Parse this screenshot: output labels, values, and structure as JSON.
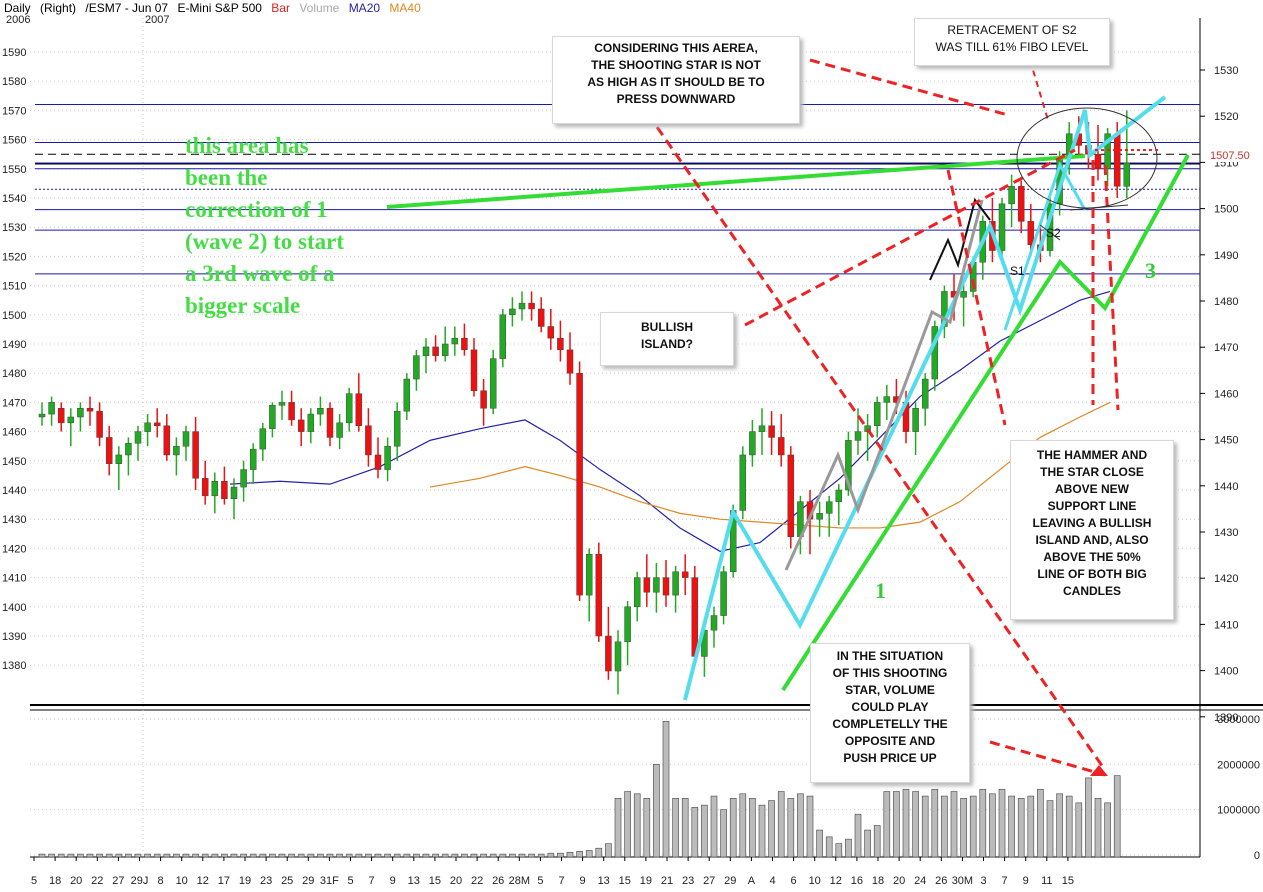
{
  "header": {
    "period": "Daily",
    "side": "(Right)",
    "symbol": "/ESM7 - Jun 07",
    "name": "E-Mini S&P 500",
    "legend_bar": "Bar",
    "legend_volume": "Volume",
    "legend_ma20": "MA20",
    "legend_ma40": "MA40",
    "year_2006": "2006",
    "year_2007": "2007"
  },
  "colors": {
    "bar_label": "#dd2222",
    "volume_label": "#aaaaaa",
    "ma20": "#2222aa",
    "ma40": "#dd8822",
    "bull": "#22aa22",
    "bear": "#ee1111"
  },
  "last_price_label": "1507.50",
  "annotations": {
    "green_note": [
      "this area has",
      "been the",
      "correction of 1",
      "(wave 2) to start",
      "a 3rd wave of a",
      "bigger scale"
    ],
    "shooting_star": [
      "CONSIDERING THIS AEREA,",
      "THE SHOOTING STAR IS NOT",
      "AS HIGH AS IT SHOULD BE TO",
      "PRESS DOWNWARD"
    ],
    "retracement": [
      "RETRACEMENT OF S2",
      "WAS TILL 61% FIBO LEVEL"
    ],
    "bullish_island": [
      "BULLISH",
      "ISLAND?"
    ],
    "hammer": [
      "THE HAMMER AND",
      "THE STAR CLOSE",
      "ABOVE NEW",
      "SUPPORT LINE",
      "LEAVING A BULLISH",
      "ISLAND AND, ALSO",
      "ABOVE THE 50%",
      "LINE OF BOTH BIG",
      "CANDLES"
    ],
    "volume_note": [
      "IN THE SITUATION",
      "OF THIS SHOOTING",
      "STAR, VOLUME",
      "COULD PLAY",
      "COMPLETELLY THE",
      "OPPOSITE AND",
      "PUSH PRICE UP"
    ],
    "wave_1": "1",
    "wave_3": "3",
    "s1": "S1",
    "s2": "S2"
  },
  "chart_data": {
    "type": "candlestick",
    "instrument": "/ESM7 - Jun 07 E-Mini S&P 500",
    "period": "Daily",
    "left_axis": {
      "min": 1370,
      "max": 1595,
      "ticks": [
        1380,
        1390,
        1400,
        1410,
        1420,
        1430,
        1440,
        1450,
        1460,
        1470,
        1480,
        1490,
        1500,
        1510,
        1520,
        1530,
        1540,
        1550,
        1560,
        1570,
        1580,
        1590
      ]
    },
    "right_axis": {
      "ticks": [
        1390,
        1400,
        1410,
        1420,
        1430,
        1440,
        1450,
        1460,
        1470,
        1480,
        1490,
        1500,
        1510,
        1520,
        1530
      ]
    },
    "volume_axis": {
      "min": 0,
      "max": 3000000,
      "ticks": [
        0,
        1000000,
        2000000,
        3000000
      ],
      "tick_labels": [
        "0",
        "1000000",
        "2000000",
        "3000000"
      ]
    },
    "x_tick_labels": [
      "5",
      "18",
      "20",
      "22",
      "27",
      "29J",
      "8",
      "10",
      "12",
      "17",
      "19",
      "23",
      "25",
      "29",
      "31F",
      "5",
      "7",
      "9",
      "13",
      "15",
      "20",
      "22",
      "26",
      "28M",
      "5",
      "7",
      "9",
      "13",
      "15",
      "19",
      "21",
      "23",
      "27",
      "29",
      "A",
      "4",
      "6",
      "10",
      "12",
      "16",
      "18",
      "20",
      "24",
      "26",
      "30M",
      "3",
      "7",
      "9",
      "11",
      "15"
    ],
    "horizontal_levels": [
      {
        "value": 1572,
        "style": "solid"
      },
      {
        "value": 1559,
        "style": "solid"
      },
      {
        "value": 1555,
        "style": "dashed"
      },
      {
        "value": 1552,
        "style": "solid"
      },
      {
        "value": 1550,
        "style": "solid"
      },
      {
        "value": 1543,
        "style": "dotted"
      },
      {
        "value": 1536,
        "style": "solid"
      },
      {
        "value": 1529,
        "style": "solid"
      },
      {
        "value": 1514,
        "style": "solid"
      }
    ],
    "candles": [
      [
        1465,
        1470,
        1462,
        1466
      ],
      [
        1466,
        1472,
        1462,
        1470
      ],
      [
        1468,
        1470,
        1460,
        1463
      ],
      [
        1463,
        1468,
        1455,
        1465
      ],
      [
        1465,
        1470,
        1460,
        1468
      ],
      [
        1468,
        1472,
        1462,
        1467
      ],
      [
        1467,
        1470,
        1455,
        1458
      ],
      [
        1458,
        1462,
        1445,
        1449
      ],
      [
        1449,
        1455,
        1440,
        1452
      ],
      [
        1452,
        1458,
        1445,
        1456
      ],
      [
        1456,
        1462,
        1450,
        1460
      ],
      [
        1460,
        1466,
        1455,
        1463
      ],
      [
        1463,
        1468,
        1458,
        1462
      ],
      [
        1462,
        1466,
        1450,
        1452
      ],
      [
        1452,
        1458,
        1445,
        1455
      ],
      [
        1455,
        1462,
        1450,
        1460
      ],
      [
        1460,
        1465,
        1440,
        1444
      ],
      [
        1444,
        1450,
        1435,
        1438
      ],
      [
        1438,
        1446,
        1432,
        1443
      ],
      [
        1443,
        1448,
        1435,
        1437
      ],
      [
        1437,
        1444,
        1430,
        1441
      ],
      [
        1441,
        1450,
        1436,
        1447
      ],
      [
        1447,
        1456,
        1442,
        1454
      ],
      [
        1454,
        1463,
        1450,
        1461
      ],
      [
        1461,
        1470,
        1458,
        1469
      ],
      [
        1469,
        1474,
        1464,
        1470
      ],
      [
        1470,
        1474,
        1462,
        1464
      ],
      [
        1464,
        1468,
        1455,
        1460
      ],
      [
        1460,
        1468,
        1456,
        1466
      ],
      [
        1466,
        1472,
        1462,
        1468
      ],
      [
        1468,
        1470,
        1455,
        1458
      ],
      [
        1458,
        1466,
        1454,
        1463
      ],
      [
        1463,
        1475,
        1460,
        1473
      ],
      [
        1473,
        1480,
        1460,
        1462
      ],
      [
        1462,
        1468,
        1448,
        1452
      ],
      [
        1452,
        1458,
        1444,
        1447
      ],
      [
        1447,
        1458,
        1443,
        1455
      ],
      [
        1455,
        1470,
        1450,
        1467
      ],
      [
        1467,
        1480,
        1464,
        1478
      ],
      [
        1478,
        1488,
        1474,
        1486
      ],
      [
        1486,
        1492,
        1480,
        1489
      ],
      [
        1489,
        1493,
        1484,
        1486
      ],
      [
        1486,
        1496,
        1484,
        1490
      ],
      [
        1490,
        1496,
        1486,
        1492
      ],
      [
        1492,
        1497,
        1486,
        1488
      ],
      [
        1488,
        1492,
        1472,
        1474
      ],
      [
        1474,
        1478,
        1462,
        1468
      ],
      [
        1468,
        1488,
        1466,
        1485
      ],
      [
        1485,
        1502,
        1482,
        1500
      ],
      [
        1500,
        1506,
        1496,
        1502
      ],
      [
        1502,
        1508,
        1498,
        1504
      ],
      [
        1504,
        1508,
        1498,
        1502
      ],
      [
        1502,
        1506,
        1494,
        1496
      ],
      [
        1496,
        1502,
        1488,
        1492
      ],
      [
        1492,
        1498,
        1484,
        1488
      ],
      [
        1488,
        1494,
        1476,
        1480
      ],
      [
        1480,
        1484,
        1402,
        1404
      ],
      [
        1404,
        1420,
        1395,
        1418
      ],
      [
        1418,
        1422,
        1388,
        1390
      ],
      [
        1390,
        1400,
        1375,
        1378
      ],
      [
        1378,
        1392,
        1370,
        1388
      ],
      [
        1388,
        1402,
        1380,
        1400
      ],
      [
        1400,
        1412,
        1395,
        1410
      ],
      [
        1410,
        1418,
        1400,
        1405
      ],
      [
        1405,
        1415,
        1398,
        1410
      ],
      [
        1410,
        1416,
        1400,
        1404
      ],
      [
        1404,
        1414,
        1398,
        1412
      ],
      [
        1412,
        1418,
        1404,
        1410
      ],
      [
        1410,
        1414,
        1380,
        1383
      ],
      [
        1383,
        1394,
        1376,
        1392
      ],
      [
        1392,
        1400,
        1386,
        1397
      ],
      [
        1397,
        1414,
        1394,
        1412
      ],
      [
        1412,
        1435,
        1410,
        1433
      ],
      [
        1433,
        1455,
        1430,
        1452
      ],
      [
        1452,
        1464,
        1448,
        1460
      ],
      [
        1460,
        1468,
        1452,
        1462
      ],
      [
        1462,
        1467,
        1452,
        1458
      ],
      [
        1458,
        1466,
        1448,
        1452
      ],
      [
        1452,
        1455,
        1420,
        1424
      ],
      [
        1424,
        1438,
        1418,
        1436
      ],
      [
        1436,
        1440,
        1418,
        1430
      ],
      [
        1430,
        1436,
        1424,
        1432
      ],
      [
        1432,
        1438,
        1424,
        1436
      ],
      [
        1436,
        1442,
        1428,
        1440
      ],
      [
        1440,
        1460,
        1438,
        1457
      ],
      [
        1457,
        1468,
        1452,
        1460
      ],
      [
        1460,
        1466,
        1450,
        1462
      ],
      [
        1462,
        1472,
        1458,
        1470
      ],
      [
        1470,
        1476,
        1464,
        1472
      ],
      [
        1472,
        1478,
        1466,
        1470
      ],
      [
        1470,
        1474,
        1456,
        1460
      ],
      [
        1460,
        1470,
        1452,
        1468
      ],
      [
        1468,
        1480,
        1462,
        1478
      ],
      [
        1478,
        1498,
        1474,
        1496
      ],
      [
        1496,
        1510,
        1492,
        1508
      ],
      [
        1508,
        1514,
        1498,
        1506
      ],
      [
        1506,
        1512,
        1496,
        1508
      ],
      [
        1508,
        1520,
        1506,
        1518
      ],
      [
        1518,
        1534,
        1512,
        1532
      ],
      [
        1532,
        1540,
        1518,
        1522
      ],
      [
        1522,
        1540,
        1518,
        1538
      ],
      [
        1538,
        1548,
        1530,
        1544
      ],
      [
        1544,
        1546,
        1528,
        1532
      ],
      [
        1532,
        1538,
        1520,
        1524
      ],
      [
        1524,
        1530,
        1518,
        1522
      ],
      [
        1522,
        1540,
        1520,
        1538
      ],
      [
        1538,
        1556,
        1534,
        1554
      ],
      [
        1554,
        1566,
        1548,
        1562
      ],
      [
        1562,
        1568,
        1554,
        1558
      ],
      [
        1558,
        1566,
        1550,
        1555
      ],
      [
        1555,
        1565,
        1546,
        1550
      ],
      [
        1550,
        1564,
        1544,
        1562
      ],
      [
        1562,
        1566,
        1540,
        1544
      ],
      [
        1544,
        1570,
        1540,
        1552
      ]
    ],
    "volumes": [
      20000,
      20000,
      20000,
      20000,
      20000,
      20000,
      20000,
      20000,
      20000,
      20000,
      20000,
      20000,
      20000,
      20000,
      20000,
      20000,
      20000,
      20000,
      20000,
      20000,
      20000,
      20000,
      20000,
      20000,
      20000,
      20000,
      20000,
      20000,
      20000,
      20000,
      20000,
      20000,
      20000,
      20000,
      20000,
      20000,
      20000,
      20000,
      20000,
      20000,
      20000,
      20000,
      20000,
      20000,
      20000,
      20000,
      20000,
      20000,
      20000,
      20000,
      20000,
      20000,
      20000,
      40000,
      40000,
      60000,
      80000,
      100000,
      150000,
      250000,
      1250000,
      1400000,
      1350000,
      1250000,
      2000000,
      2950000,
      1250000,
      1250000,
      1050000,
      1100000,
      1300000,
      1000000,
      1250000,
      1350000,
      1250000,
      1100000,
      1200000,
      1400000,
      1250000,
      1350000,
      1300000,
      550000,
      400000,
      250000,
      350000,
      900000,
      550000,
      650000,
      1400000,
      1400000,
      1450000,
      1400000,
      1300000,
      1450000,
      1300000,
      1400000,
      1250000,
      1300000,
      1450000,
      1350000,
      1450000,
      1300000,
      1250000,
      1300000,
      1450000,
      1200000,
      1350000,
      1300000,
      1150000,
      1700000,
      1250000,
      1150000,
      1750000
    ],
    "ma20_points": [
      [
        230,
        1442
      ],
      [
        280,
        1443
      ],
      [
        330,
        1442
      ],
      [
        380,
        1448
      ],
      [
        430,
        1457
      ],
      [
        480,
        1461
      ],
      [
        525,
        1464
      ],
      [
        560,
        1457
      ],
      [
        600,
        1447
      ],
      [
        640,
        1438
      ],
      [
        680,
        1427
      ],
      [
        720,
        1419
      ],
      [
        760,
        1422
      ],
      [
        800,
        1433
      ],
      [
        840,
        1444
      ],
      [
        880,
        1458
      ],
      [
        920,
        1472
      ],
      [
        960,
        1481
      ],
      [
        1000,
        1491
      ],
      [
        1040,
        1498
      ],
      [
        1080,
        1505
      ],
      [
        1110,
        1508
      ]
    ],
    "ma40_points": [
      [
        430,
        1441
      ],
      [
        480,
        1444
      ],
      [
        525,
        1448
      ],
      [
        560,
        1445
      ],
      [
        600,
        1441
      ],
      [
        640,
        1436
      ],
      [
        680,
        1432
      ],
      [
        720,
        1430
      ],
      [
        760,
        1429
      ],
      [
        800,
        1428
      ],
      [
        840,
        1427
      ],
      [
        880,
        1427
      ],
      [
        920,
        1429
      ],
      [
        960,
        1436
      ],
      [
        1000,
        1447
      ],
      [
        1040,
        1458
      ],
      [
        1080,
        1465
      ],
      [
        1110,
        1470
      ]
    ]
  }
}
